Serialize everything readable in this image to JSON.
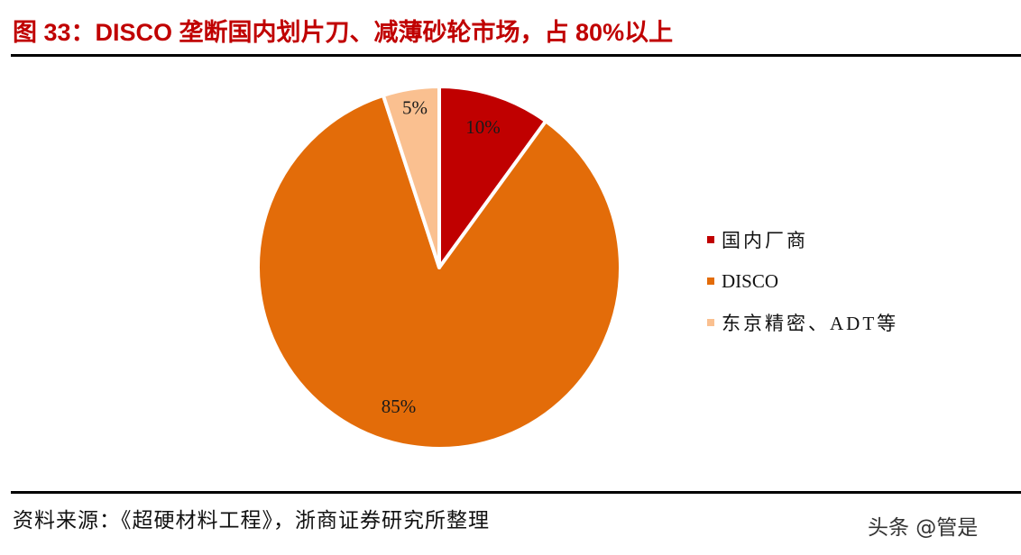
{
  "header": {
    "title": "图 33：DISCO 垄断国内划片刀、减薄砂轮市场，占 80%以上"
  },
  "chart_data": {
    "type": "pie",
    "title": "图 33：DISCO 垄断国内划片刀、减薄砂轮市场，占 80%以上",
    "categories": [
      "国内厂商",
      "DISCO",
      "东京精密、ADT等"
    ],
    "values": [
      10,
      85,
      5
    ],
    "labels": [
      "10%",
      "85%",
      "5%"
    ],
    "colors": [
      "#c00000",
      "#e36c09",
      "#fac090"
    ],
    "start_angle_deg": 0,
    "direction": "clockwise",
    "legend_position": "right"
  },
  "legend": {
    "items": [
      {
        "label": "国内厂商",
        "color": "#c00000"
      },
      {
        "label": "DISCO",
        "color": "#e36c09"
      },
      {
        "label": "东京精密、ADT等",
        "color": "#fac090"
      }
    ]
  },
  "footer": {
    "source": "资料来源：《超硬材料工程》，浙商证券研究所整理",
    "watermark": "头条 @管是"
  }
}
